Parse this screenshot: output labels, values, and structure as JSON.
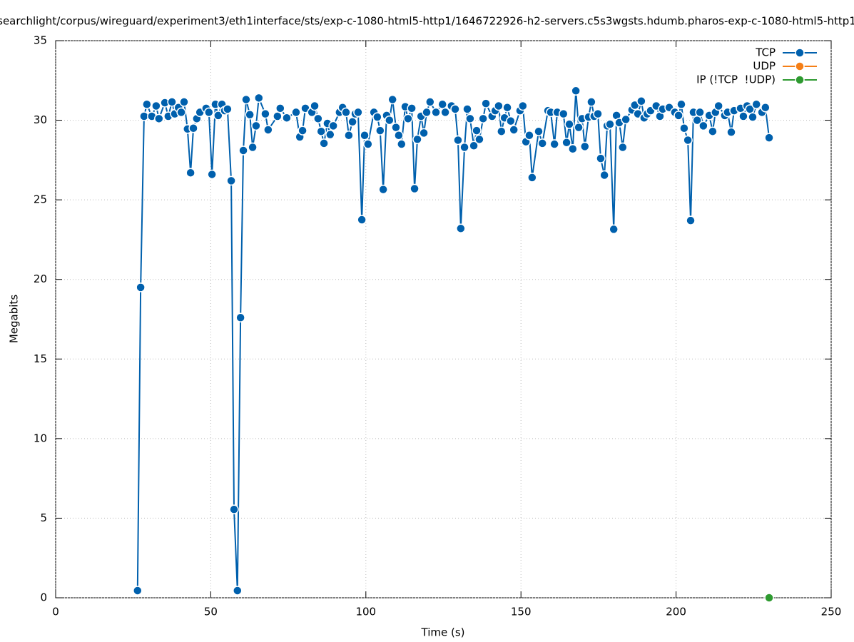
{
  "chart_data": {
    "type": "line",
    "title": "searchlight/corpus/wireguard/experiment3/eth1interface/sts/exp-c-1080-html5-http1/1646722926-h2-servers.c5s3wgsts.hdumb.pharos-exp-c-1080-html5-http1",
    "x_label": "Time (s)",
    "y_label": "Megabits",
    "xlim": [
      0,
      250
    ],
    "xticks": [
      0,
      50,
      100,
      150,
      200,
      250
    ],
    "ylim": [
      0,
      35
    ],
    "yticks": [
      0,
      5,
      10,
      15,
      20,
      25,
      30,
      35
    ],
    "grid": true,
    "legend": "top-right",
    "series": [
      {
        "name": "TCP",
        "color": "#0060ad",
        "x": [
          26.4,
          27.4,
          28.5,
          29.4,
          31.0,
          32.4,
          33.3,
          35.2,
          36.3,
          37.5,
          38.4,
          39.6,
          40.5,
          41.4,
          42.5,
          43.5,
          44.4,
          45.5,
          46.5,
          48.5,
          49.4,
          50.4,
          51.5,
          52.4,
          53.6,
          54.5,
          55.4,
          56.6,
          57.5,
          58.6,
          59.6,
          60.5,
          61.4,
          62.6,
          63.5,
          64.6,
          65.5,
          67.6,
          68.5,
          71.5,
          72.4,
          74.5,
          77.5,
          78.7,
          79.6,
          80.5,
          82.6,
          83.5,
          84.6,
          85.6,
          86.5,
          87.6,
          88.5,
          89.5,
          91.5,
          92.5,
          93.6,
          94.5,
          95.7,
          96.6,
          97.5,
          98.7,
          99.6,
          100.7,
          102.6,
          103.7,
          104.6,
          105.6,
          106.7,
          107.6,
          108.6,
          109.7,
          110.6,
          111.5,
          112.7,
          113.6,
          114.8,
          115.7,
          116.6,
          117.8,
          118.7,
          119.6,
          120.7,
          122.6,
          124.7,
          125.6,
          127.6,
          128.8,
          129.7,
          130.6,
          131.8,
          132.7,
          133.6,
          134.8,
          135.7,
          136.6,
          137.8,
          138.7,
          140.7,
          141.7,
          142.8,
          143.7,
          144.7,
          145.6,
          146.7,
          147.7,
          149.7,
          150.6,
          151.6,
          152.7,
          153.6,
          155.7,
          156.9,
          158.7,
          159.6,
          160.8,
          161.7,
          163.7,
          164.7,
          165.6,
          166.7,
          167.7,
          168.6,
          169.7,
          170.6,
          171.8,
          172.7,
          173.6,
          174.8,
          175.7,
          176.9,
          177.8,
          178.7,
          179.9,
          180.8,
          181.7,
          182.8,
          183.8,
          185.8,
          186.7,
          187.7,
          188.8,
          189.7,
          190.7,
          191.8,
          193.6,
          194.8,
          195.7,
          197.8,
          199.6,
          200.8,
          201.7,
          202.6,
          203.8,
          204.7,
          205.6,
          206.8,
          207.7,
          208.8,
          210.7,
          211.8,
          212.7,
          213.7,
          215.7,
          216.6,
          217.8,
          218.7,
          220.8,
          221.7,
          222.9,
          223.8,
          224.7,
          225.9,
          227.7,
          228.8,
          230.0
        ],
        "values": [
          0.45,
          19.5,
          30.25,
          31.0,
          30.25,
          30.9,
          30.1,
          31.1,
          30.25,
          31.15,
          30.4,
          30.8,
          30.5,
          31.15,
          29.45,
          26.7,
          29.5,
          30.1,
          30.5,
          30.75,
          30.5,
          26.6,
          31.0,
          30.3,
          31.0,
          30.6,
          30.7,
          26.2,
          5.55,
          0.45,
          17.6,
          28.1,
          31.3,
          30.35,
          28.3,
          29.65,
          31.4,
          30.4,
          29.4,
          30.25,
          30.75,
          30.15,
          30.5,
          28.95,
          29.35,
          30.75,
          30.5,
          30.9,
          30.1,
          29.3,
          28.55,
          29.8,
          29.1,
          29.65,
          30.5,
          30.8,
          30.5,
          29.05,
          29.9,
          30.4,
          30.5,
          23.75,
          29.05,
          28.5,
          30.5,
          30.2,
          29.35,
          25.65,
          30.3,
          30.0,
          31.3,
          29.55,
          29.05,
          28.5,
          30.85,
          30.1,
          30.75,
          25.7,
          28.8,
          30.25,
          29.2,
          30.5,
          31.15,
          30.5,
          31.0,
          30.5,
          30.9,
          30.7,
          28.75,
          23.2,
          28.3,
          30.7,
          30.1,
          28.4,
          29.35,
          28.8,
          30.1,
          31.05,
          30.25,
          30.6,
          30.9,
          29.3,
          30.15,
          30.8,
          29.95,
          29.4,
          30.6,
          30.9,
          28.65,
          29.05,
          26.4,
          29.3,
          28.55,
          30.6,
          30.5,
          28.5,
          30.5,
          30.4,
          28.6,
          29.75,
          28.2,
          31.85,
          29.55,
          30.1,
          28.35,
          30.2,
          31.15,
          30.25,
          30.4,
          27.6,
          26.55,
          29.65,
          29.75,
          23.15,
          30.3,
          29.85,
          28.3,
          30.05,
          30.65,
          30.95,
          30.4,
          31.2,
          30.15,
          30.4,
          30.6,
          30.9,
          30.25,
          30.7,
          30.8,
          30.5,
          30.3,
          31.0,
          29.5,
          28.75,
          23.7,
          30.5,
          30.0,
          30.5,
          29.65,
          30.3,
          29.3,
          30.5,
          30.9,
          30.3,
          30.5,
          29.25,
          30.6,
          30.75,
          30.25,
          30.9,
          30.7,
          30.2,
          31.0,
          30.5,
          30.8,
          28.9
        ]
      },
      {
        "name": "UDP",
        "color": "#f57f17",
        "x": [],
        "values": []
      },
      {
        "name": "IP (!TCP  !UDP)",
        "color": "#2e9a30",
        "x": [
          230.0
        ],
        "values": [
          0
        ]
      }
    ]
  }
}
